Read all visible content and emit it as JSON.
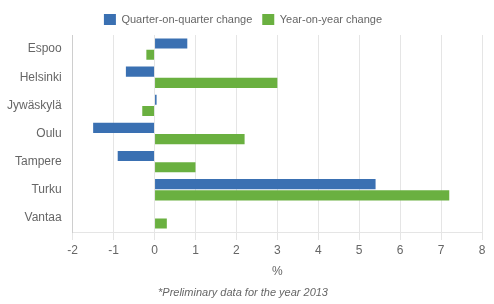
{
  "chart_data": {
    "type": "bar",
    "orientation": "horizontal",
    "categories": [
      "Espoo",
      "Helsinki",
      "Jywäskylä",
      "Oulu",
      "Tampere",
      "Turku",
      "Vantaa"
    ],
    "series": [
      {
        "name": "Quarter-on-quarter change",
        "color": "#3a70b2",
        "values": [
          0.8,
          -0.7,
          0.05,
          -1.5,
          -0.9,
          5.4,
          0.0
        ]
      },
      {
        "name": "Year-on-year change",
        "color": "#6ab040",
        "values": [
          -0.2,
          3.0,
          -0.3,
          2.2,
          1.0,
          7.2,
          0.3
        ]
      }
    ],
    "xlabel": "%",
    "footnote": "*Preliminary data for the year 2013",
    "xlim": [
      -2,
      8
    ],
    "xticks": [
      -2,
      -1,
      0,
      1,
      2,
      3,
      4,
      5,
      6,
      7,
      8
    ],
    "grid": true,
    "legend": "top"
  }
}
